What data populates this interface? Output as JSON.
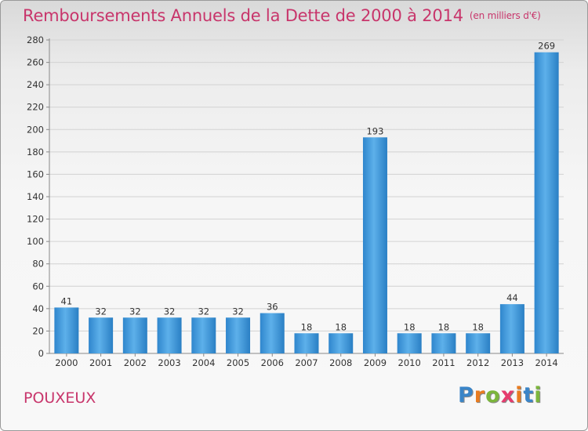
{
  "title": "Remboursements Annuels de la Dette de 2000 à 2014",
  "subtitle": "(en milliers d'€)",
  "commune": "POUXEUX",
  "logo": {
    "letters": [
      "P",
      "r",
      "o",
      "x",
      "i",
      "t",
      "i"
    ],
    "colors": [
      "#3a85c8",
      "#e97c20",
      "#7cb63c",
      "#e63c6e",
      "#e97c20",
      "#3a85c8",
      "#7cb63c"
    ]
  },
  "chart_data": {
    "type": "bar",
    "categories": [
      "2000",
      "2001",
      "2002",
      "2003",
      "2004",
      "2005",
      "2006",
      "2007",
      "2008",
      "2009",
      "2010",
      "2011",
      "2012",
      "2013",
      "2014"
    ],
    "values": [
      41,
      32,
      32,
      32,
      32,
      32,
      36,
      18,
      18,
      193,
      18,
      18,
      18,
      44,
      269
    ],
    "ylim": [
      0,
      280
    ],
    "yticks": [
      0,
      20,
      40,
      60,
      80,
      100,
      120,
      140,
      160,
      180,
      200,
      220,
      240,
      260,
      280
    ],
    "grid": true,
    "bar_color": "#3f97dc"
  }
}
